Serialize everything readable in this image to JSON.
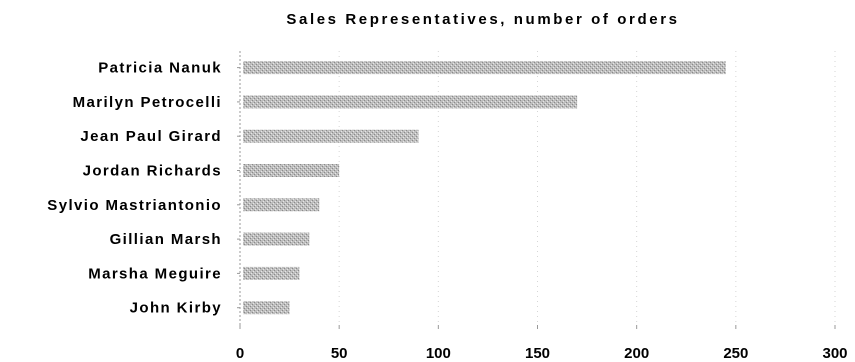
{
  "chart_data": {
    "type": "bar",
    "orientation": "horizontal",
    "title": "Sales Representatives, number of orders",
    "xlabel": "",
    "ylabel": "",
    "categories": [
      "Patricia Nanuk",
      "Marilyn Petrocelli",
      "Jean Paul Girard",
      "Jordan Richards",
      "Sylvio Mastriantonio",
      "Gillian Marsh",
      "Marsha Meguire",
      "John Kirby"
    ],
    "values": [
      245,
      170,
      90,
      50,
      40,
      35,
      30,
      25
    ],
    "xlim": [
      0,
      300
    ],
    "xticks": [
      "0",
      "50",
      "100",
      "150",
      "200",
      "250",
      "300"
    ],
    "grid": "vertical",
    "legend": "none",
    "bar_color": "#b5b5b5",
    "gridline_color": "#d6d6d6"
  }
}
